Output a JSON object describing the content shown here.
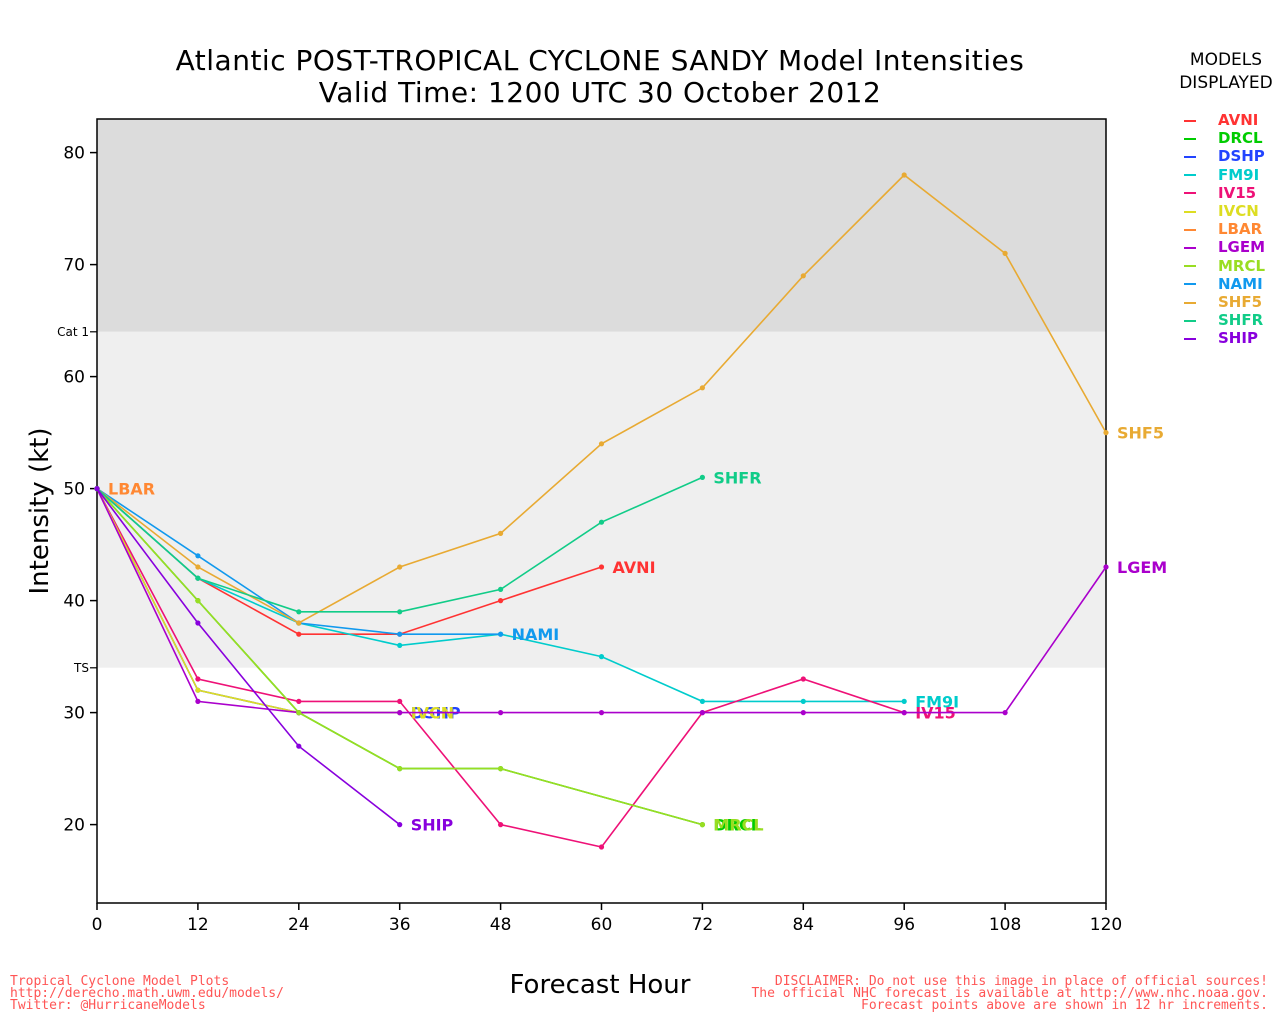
{
  "header": {
    "title_line1": "Atlantic POST-TROPICAL CYCLONE SANDY Model Intensities",
    "title_line2": "Valid Time: 1200 UTC 30 October 2012"
  },
  "legend": {
    "title_line1": "MODELS",
    "title_line2": "DISPLAYED"
  },
  "footer": {
    "left_line1": "Tropical Cyclone Model Plots",
    "left_line2": "http://derecho.math.uwm.edu/models/",
    "left_line3": "Twitter: @HurricaneModels",
    "right_line1": "DISCLAIMER: Do not use this image in place of official sources!",
    "right_line2": "The official NHC forecast is available at http://www.nhc.noaa.gov.",
    "right_line3": "Forecast points above are shown in 12 hr increments."
  },
  "chart_data": {
    "type": "line",
    "title": "Atlantic POST-TROPICAL CYCLONE SANDY Model Intensities",
    "subtitle": "Valid Time: 1200 UTC 30 October 2012",
    "xlabel": "Forecast Hour",
    "ylabel": "Intensity (kt)",
    "xlim": [
      0,
      120
    ],
    "ylim": [
      13,
      83
    ],
    "xticks": [
      0,
      12,
      24,
      36,
      48,
      60,
      72,
      84,
      96,
      108,
      120
    ],
    "yticks": [
      20,
      30,
      40,
      50,
      60,
      70,
      80
    ],
    "thresholds": [
      {
        "label": "TS",
        "value": 34
      },
      {
        "label": "Cat 1",
        "value": 64
      }
    ],
    "band_colors": {
      "below_ts": "#ffffff",
      "ts_band": "#efefef",
      "cat1_band": "#dcdcdc"
    },
    "series": [
      {
        "name": "AVNI",
        "color": "#ff3333",
        "x": [
          0,
          12,
          24,
          36,
          48,
          60
        ],
        "values": [
          50,
          42,
          37,
          37,
          40,
          43
        ],
        "end_label": "AVNI"
      },
      {
        "name": "DRCL",
        "color": "#00cc00",
        "x": [
          0,
          12,
          24,
          36,
          48,
          72
        ],
        "values": [
          50,
          40,
          30,
          25,
          25,
          20
        ],
        "end_label": "DRCL"
      },
      {
        "name": "DSHP",
        "color": "#2244ff",
        "x": [
          0,
          12,
          24,
          36
        ],
        "values": [
          50,
          32,
          30,
          30
        ],
        "end_label": "DSHP"
      },
      {
        "name": "FM9I",
        "color": "#00cccc",
        "x": [
          0,
          12,
          24,
          36,
          48,
          60,
          72,
          84,
          96
        ],
        "values": [
          50,
          42,
          38,
          36,
          37,
          35,
          31,
          31,
          31
        ],
        "end_label": "FM9I"
      },
      {
        "name": "IV15",
        "color": "#ee1177",
        "x": [
          0,
          12,
          24,
          36,
          48,
          60,
          72,
          84,
          96
        ],
        "values": [
          50,
          33,
          31,
          31,
          20,
          18,
          30,
          33,
          30
        ],
        "end_label": "IV15"
      },
      {
        "name": "IVCN",
        "color": "#dddd22",
        "x": [
          0,
          12,
          24,
          36
        ],
        "values": [
          50,
          32,
          30,
          30
        ],
        "end_label": "IVCN"
      },
      {
        "name": "LBAR",
        "color": "#ff8833",
        "x": [
          0
        ],
        "values": [
          50
        ],
        "end_label": "LBAR"
      },
      {
        "name": "LGEM",
        "color": "#aa00cc",
        "x": [
          0,
          12,
          24,
          36,
          48,
          60,
          72,
          84,
          96,
          108,
          120
        ],
        "values": [
          50,
          31,
          30,
          30,
          30,
          30,
          30,
          30,
          30,
          30,
          43
        ],
        "end_label": "LGEM"
      },
      {
        "name": "MRCL",
        "color": "#99dd22",
        "x": [
          0,
          12,
          24,
          36,
          48,
          72
        ],
        "values": [
          50,
          40,
          30,
          25,
          25,
          20
        ],
        "end_label": "MRCL"
      },
      {
        "name": "NAMI",
        "color": "#1199ee",
        "x": [
          0,
          12,
          24,
          36,
          48
        ],
        "values": [
          50,
          44,
          38,
          37,
          37
        ],
        "end_label": "NAMI"
      },
      {
        "name": "SHF5",
        "color": "#e8aa33",
        "x": [
          0,
          12,
          24,
          36,
          48,
          60,
          72,
          84,
          96,
          108,
          120
        ],
        "values": [
          50,
          43,
          38,
          43,
          46,
          54,
          59,
          69,
          78,
          71,
          55
        ],
        "end_label": "SHF5"
      },
      {
        "name": "SHFR",
        "color": "#11cc88",
        "x": [
          0,
          12,
          24,
          36,
          48,
          60,
          72
        ],
        "values": [
          50,
          42,
          39,
          39,
          41,
          47,
          51
        ],
        "end_label": "SHFR"
      },
      {
        "name": "SHIP",
        "color": "#8800dd",
        "x": [
          0,
          12,
          24,
          36
        ],
        "values": [
          50,
          38,
          27,
          20
        ],
        "end_label": "SHIP"
      }
    ]
  }
}
